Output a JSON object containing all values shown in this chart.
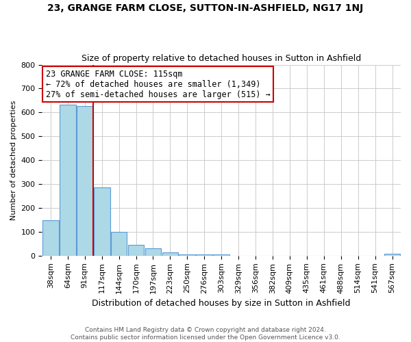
{
  "title": "23, GRANGE FARM CLOSE, SUTTON-IN-ASHFIELD, NG17 1NJ",
  "subtitle": "Size of property relative to detached houses in Sutton in Ashfield",
  "xlabel": "Distribution of detached houses by size in Sutton in Ashfield",
  "ylabel": "Number of detached properties",
  "bar_labels": [
    "38sqm",
    "64sqm",
    "91sqm",
    "117sqm",
    "144sqm",
    "170sqm",
    "197sqm",
    "223sqm",
    "250sqm",
    "276sqm",
    "303sqm",
    "329sqm",
    "356sqm",
    "382sqm",
    "409sqm",
    "435sqm",
    "461sqm",
    "488sqm",
    "514sqm",
    "541sqm",
    "567sqm"
  ],
  "bar_values": [
    148,
    632,
    628,
    285,
    100,
    45,
    32,
    13,
    5,
    5,
    5,
    0,
    0,
    0,
    0,
    0,
    0,
    0,
    0,
    0,
    8
  ],
  "bar_color": "#add8e6",
  "bar_edge_color": "#5b9bd5",
  "vline_color": "#cc0000",
  "ylim": [
    0,
    800
  ],
  "yticks": [
    0,
    100,
    200,
    300,
    400,
    500,
    600,
    700,
    800
  ],
  "ann_line1": "23 GRANGE FARM CLOSE: 115sqm",
  "ann_line2": "← 72% of detached houses are smaller (1,349)",
  "ann_line3": "27% of semi-detached houses are larger (515) →",
  "footer_line1": "Contains HM Land Registry data © Crown copyright and database right 2024.",
  "footer_line2": "Contains public sector information licensed under the Open Government Licence v3.0.",
  "background_color": "#ffffff",
  "grid_color": "#cccccc",
  "title_fontsize": 10,
  "subtitle_fontsize": 9,
  "ylabel_fontsize": 8,
  "xlabel_fontsize": 9,
  "tick_fontsize": 8,
  "ann_fontsize": 8.5,
  "footer_fontsize": 6.5
}
